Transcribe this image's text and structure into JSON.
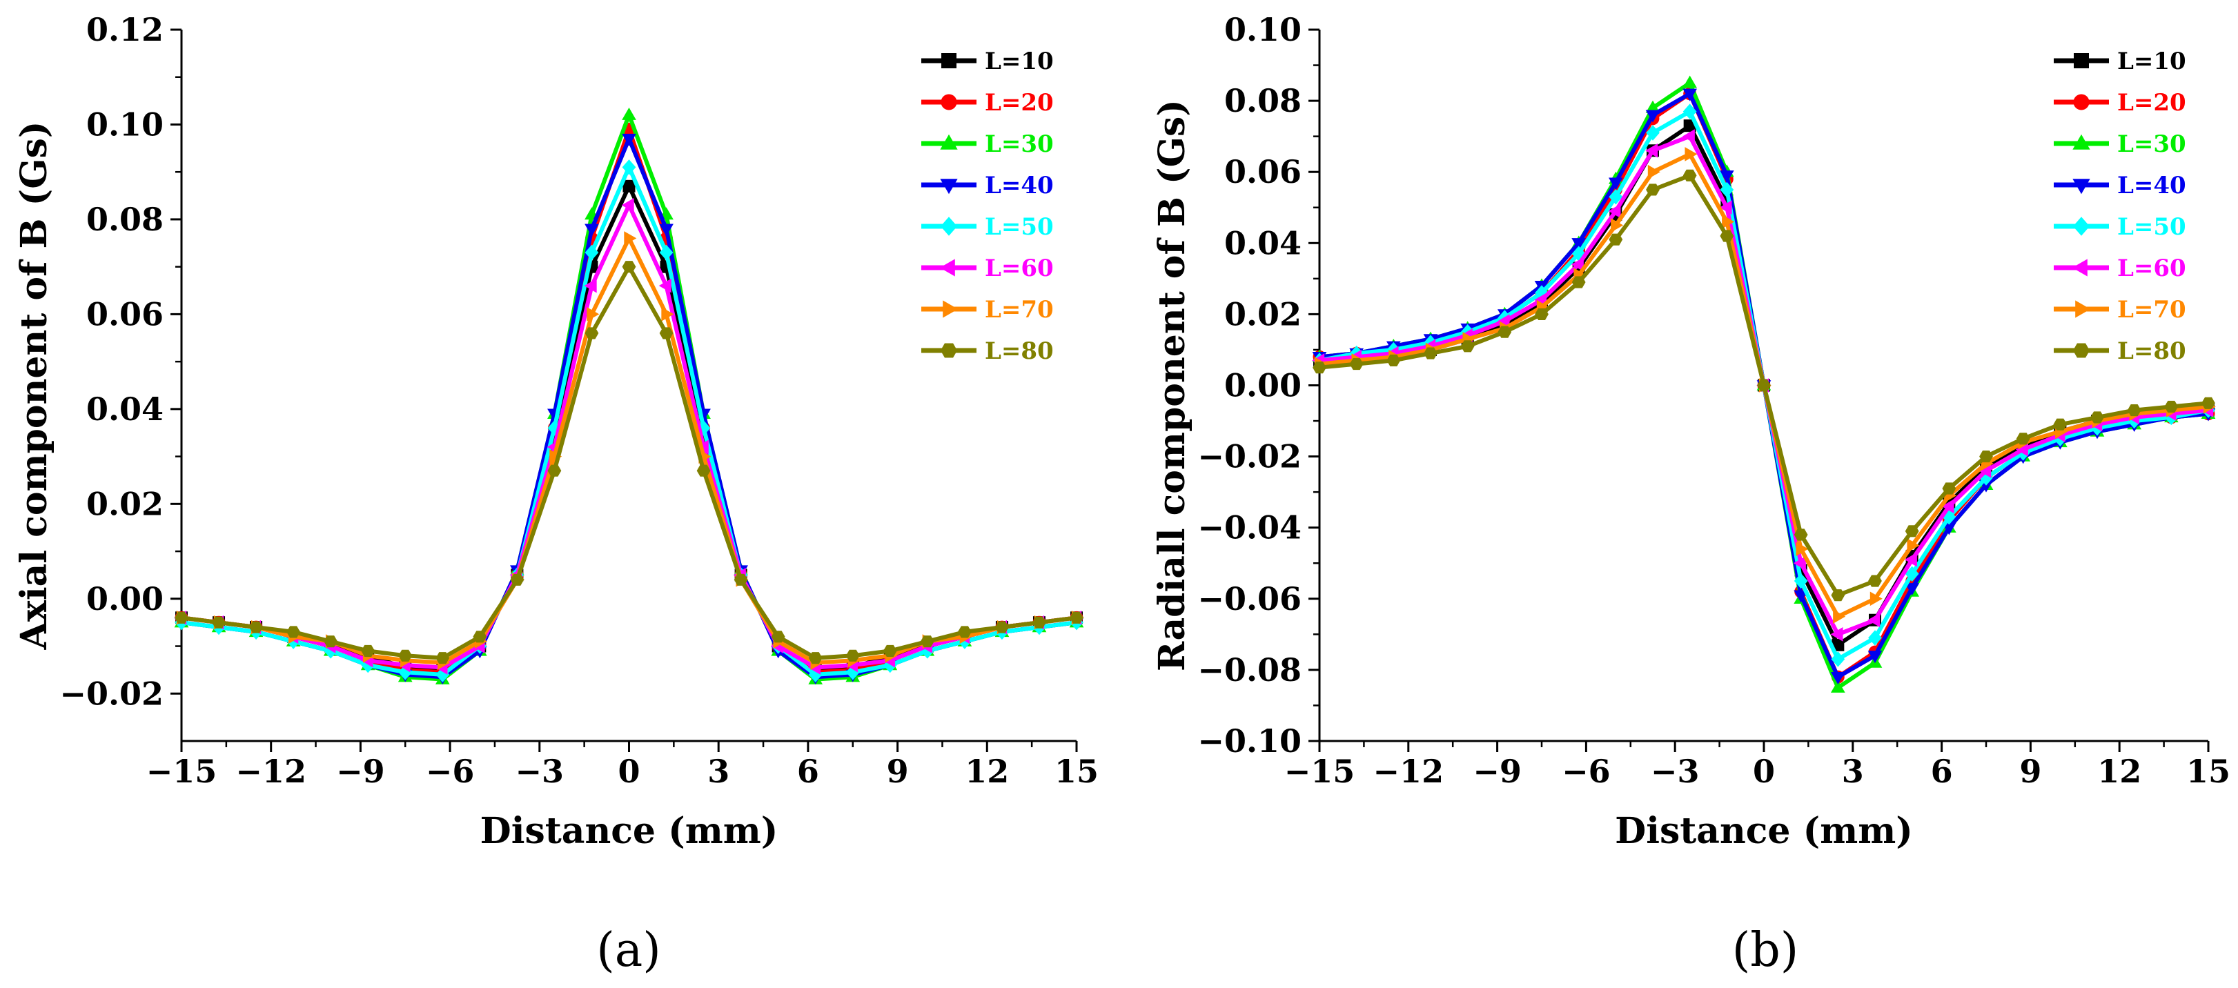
{
  "colors": {
    "L=10": "#000000",
    "L=20": "#ff0000",
    "L=30": "#00ee00",
    "L=40": "#0000ee",
    "L=50": "#00ffff",
    "L=60": "#ff00ff",
    "L=70": "#ff8800",
    "L=80": "#808000"
  },
  "markers": [
    "square",
    "circle",
    "triangle-up",
    "triangle-down",
    "diamond",
    "triangle-left",
    "triangle-right",
    "hexagon"
  ],
  "chart_data": [
    {
      "type": "line",
      "panel_label": "(a)",
      "xlabel": "Distance (mm)",
      "ylabel": "Axial component of B (Gs)",
      "xlim": [
        -15,
        15
      ],
      "ylim": [
        -0.03,
        0.12
      ],
      "xticks": [
        -15,
        -12,
        -9,
        -6,
        -3,
        0,
        3,
        6,
        9,
        12,
        15
      ],
      "xtick_labels": [
        "−15",
        "−12",
        "−9",
        "−6",
        "−3",
        "0",
        "3",
        "6",
        "9",
        "12",
        "15"
      ],
      "yticks": [
        -0.02,
        0.0,
        0.02,
        0.04,
        0.06,
        0.08,
        0.1,
        0.12
      ],
      "ytick_labels": [
        "−0.02",
        "0.00",
        "0.02",
        "0.04",
        "0.06",
        "0.08",
        "0.10",
        "0.12"
      ],
      "legend_position": "top-right",
      "x": [
        -15,
        -13.75,
        -12.5,
        -11.25,
        -10,
        -8.75,
        -7.5,
        -6.25,
        -5,
        -3.75,
        -2.5,
        -1.25,
        0,
        1.25,
        2.5,
        3.75,
        5,
        6.25,
        7.5,
        8.75,
        10,
        11.25,
        12.5,
        13.75,
        15
      ],
      "series": [
        {
          "name": "L=10",
          "values": [
            -0.004,
            -0.005,
            -0.006,
            -0.008,
            -0.01,
            -0.012,
            -0.0145,
            -0.015,
            -0.01,
            0.005,
            0.034,
            0.07,
            0.087,
            0.07,
            0.034,
            0.005,
            -0.01,
            -0.015,
            -0.0145,
            -0.012,
            -0.01,
            -0.008,
            -0.006,
            -0.005,
            -0.004
          ]
        },
        {
          "name": "L=20",
          "values": [
            -0.004,
            -0.005,
            -0.006,
            -0.008,
            -0.01,
            -0.013,
            -0.015,
            -0.0155,
            -0.01,
            0.005,
            0.036,
            0.076,
            0.099,
            0.076,
            0.036,
            0.005,
            -0.01,
            -0.0155,
            -0.015,
            -0.013,
            -0.01,
            -0.008,
            -0.006,
            -0.005,
            -0.004
          ]
        },
        {
          "name": "L=30",
          "values": [
            -0.005,
            -0.006,
            -0.007,
            -0.009,
            -0.011,
            -0.014,
            -0.0165,
            -0.017,
            -0.011,
            0.006,
            0.039,
            0.081,
            0.102,
            0.081,
            0.039,
            0.006,
            -0.011,
            -0.017,
            -0.0165,
            -0.014,
            -0.011,
            -0.009,
            -0.007,
            -0.006,
            -0.005
          ]
        },
        {
          "name": "L=40",
          "values": [
            -0.005,
            -0.006,
            -0.007,
            -0.009,
            -0.011,
            -0.014,
            -0.016,
            -0.0165,
            -0.011,
            0.006,
            0.039,
            0.078,
            0.097,
            0.078,
            0.039,
            0.006,
            -0.011,
            -0.0165,
            -0.016,
            -0.014,
            -0.011,
            -0.009,
            -0.007,
            -0.006,
            -0.005
          ]
        },
        {
          "name": "L=50",
          "values": [
            -0.005,
            -0.006,
            -0.007,
            -0.009,
            -0.011,
            -0.014,
            -0.0155,
            -0.016,
            -0.01,
            0.005,
            0.036,
            0.073,
            0.091,
            0.073,
            0.036,
            0.005,
            -0.01,
            -0.016,
            -0.0155,
            -0.014,
            -0.011,
            -0.009,
            -0.007,
            -0.006,
            -0.005
          ]
        },
        {
          "name": "L=60",
          "values": [
            -0.004,
            -0.005,
            -0.006,
            -0.008,
            -0.01,
            -0.013,
            -0.014,
            -0.0145,
            -0.01,
            0.005,
            0.032,
            0.066,
            0.083,
            0.066,
            0.032,
            0.005,
            -0.01,
            -0.0145,
            -0.014,
            -0.013,
            -0.01,
            -0.008,
            -0.006,
            -0.005,
            -0.004
          ]
        },
        {
          "name": "L=70",
          "values": [
            -0.004,
            -0.005,
            -0.006,
            -0.008,
            -0.009,
            -0.012,
            -0.013,
            -0.0135,
            -0.009,
            0.004,
            0.03,
            0.06,
            0.076,
            0.06,
            0.03,
            0.004,
            -0.009,
            -0.0135,
            -0.013,
            -0.012,
            -0.009,
            -0.008,
            -0.006,
            -0.005,
            -0.004
          ]
        },
        {
          "name": "L=80",
          "values": [
            -0.004,
            -0.005,
            -0.006,
            -0.007,
            -0.009,
            -0.011,
            -0.012,
            -0.0125,
            -0.008,
            0.004,
            0.027,
            0.056,
            0.07,
            0.056,
            0.027,
            0.004,
            -0.008,
            -0.0125,
            -0.012,
            -0.011,
            -0.009,
            -0.007,
            -0.006,
            -0.005,
            -0.004
          ]
        }
      ]
    },
    {
      "type": "line",
      "panel_label": "(b)",
      "xlabel": "Distance (mm)",
      "ylabel": "Radiall component of B (Gs)",
      "xlim": [
        -15,
        15
      ],
      "ylim": [
        -0.1,
        0.1
      ],
      "xticks": [
        -15,
        -12,
        -9,
        -6,
        -3,
        0,
        3,
        6,
        9,
        12,
        15
      ],
      "xtick_labels": [
        "−15",
        "−12",
        "−9",
        "−6",
        "−3",
        "0",
        "3",
        "6",
        "9",
        "12",
        "15"
      ],
      "yticks": [
        -0.1,
        -0.08,
        -0.06,
        -0.04,
        -0.02,
        0.0,
        0.02,
        0.04,
        0.06,
        0.08,
        0.1
      ],
      "ytick_labels": [
        "−0.10",
        "−0.08",
        "−0.06",
        "−0.04",
        "−0.02",
        "0.00",
        "0.02",
        "0.04",
        "0.06",
        "0.08",
        "0.10"
      ],
      "legend_position": "top-right",
      "x": [
        -15,
        -13.75,
        -12.5,
        -11.25,
        -10,
        -8.75,
        -7.5,
        -6.25,
        -5,
        -3.75,
        -2.5,
        -1.25,
        0,
        1.25,
        2.5,
        3.75,
        5,
        6.25,
        7.5,
        8.75,
        10,
        11.25,
        12.5,
        13.75,
        15
      ],
      "series": [
        {
          "name": "L=10",
          "values": [
            0.007,
            0.008,
            0.009,
            0.01,
            0.013,
            0.017,
            0.023,
            0.033,
            0.048,
            0.066,
            0.073,
            0.052,
            0.0,
            -0.052,
            -0.073,
            -0.066,
            -0.048,
            -0.033,
            -0.023,
            -0.017,
            -0.013,
            -0.01,
            -0.009,
            -0.008,
            -0.007
          ]
        },
        {
          "name": "L=20",
          "values": [
            0.008,
            0.009,
            0.01,
            0.012,
            0.015,
            0.019,
            0.026,
            0.038,
            0.055,
            0.075,
            0.082,
            0.058,
            0.0,
            -0.058,
            -0.082,
            -0.075,
            -0.055,
            -0.038,
            -0.026,
            -0.019,
            -0.015,
            -0.012,
            -0.01,
            -0.009,
            -0.008
          ]
        },
        {
          "name": "L=30",
          "values": [
            0.008,
            0.009,
            0.011,
            0.013,
            0.016,
            0.02,
            0.028,
            0.04,
            0.058,
            0.078,
            0.085,
            0.06,
            0.0,
            -0.06,
            -0.085,
            -0.078,
            -0.058,
            -0.04,
            -0.028,
            -0.02,
            -0.016,
            -0.013,
            -0.011,
            -0.009,
            -0.008
          ]
        },
        {
          "name": "L=40",
          "values": [
            0.008,
            0.009,
            0.011,
            0.013,
            0.016,
            0.02,
            0.028,
            0.04,
            0.057,
            0.076,
            0.082,
            0.059,
            0.0,
            -0.059,
            -0.082,
            -0.076,
            -0.057,
            -0.04,
            -0.028,
            -0.02,
            -0.016,
            -0.013,
            -0.011,
            -0.009,
            -0.008
          ]
        },
        {
          "name": "L=50",
          "values": [
            0.007,
            0.009,
            0.01,
            0.012,
            0.015,
            0.019,
            0.026,
            0.037,
            0.053,
            0.071,
            0.077,
            0.055,
            0.0,
            -0.055,
            -0.077,
            -0.071,
            -0.053,
            -0.037,
            -0.026,
            -0.019,
            -0.015,
            -0.012,
            -0.01,
            -0.009,
            -0.007
          ]
        },
        {
          "name": "L=60",
          "values": [
            0.007,
            0.008,
            0.009,
            0.011,
            0.014,
            0.018,
            0.024,
            0.034,
            0.049,
            0.066,
            0.07,
            0.05,
            0.0,
            -0.05,
            -0.07,
            -0.066,
            -0.049,
            -0.034,
            -0.024,
            -0.018,
            -0.014,
            -0.011,
            -0.009,
            -0.008,
            -0.007
          ]
        },
        {
          "name": "L=70",
          "values": [
            0.006,
            0.007,
            0.008,
            0.01,
            0.013,
            0.016,
            0.022,
            0.031,
            0.045,
            0.06,
            0.065,
            0.046,
            0.0,
            -0.046,
            -0.065,
            -0.06,
            -0.045,
            -0.031,
            -0.022,
            -0.016,
            -0.013,
            -0.01,
            -0.008,
            -0.007,
            -0.006
          ]
        },
        {
          "name": "L=80",
          "values": [
            0.005,
            0.006,
            0.007,
            0.009,
            0.011,
            0.015,
            0.02,
            0.029,
            0.041,
            0.055,
            0.059,
            0.042,
            0.0,
            -0.042,
            -0.059,
            -0.055,
            -0.041,
            -0.029,
            -0.02,
            -0.015,
            -0.011,
            -0.009,
            -0.007,
            -0.006,
            -0.005
          ]
        }
      ]
    }
  ]
}
